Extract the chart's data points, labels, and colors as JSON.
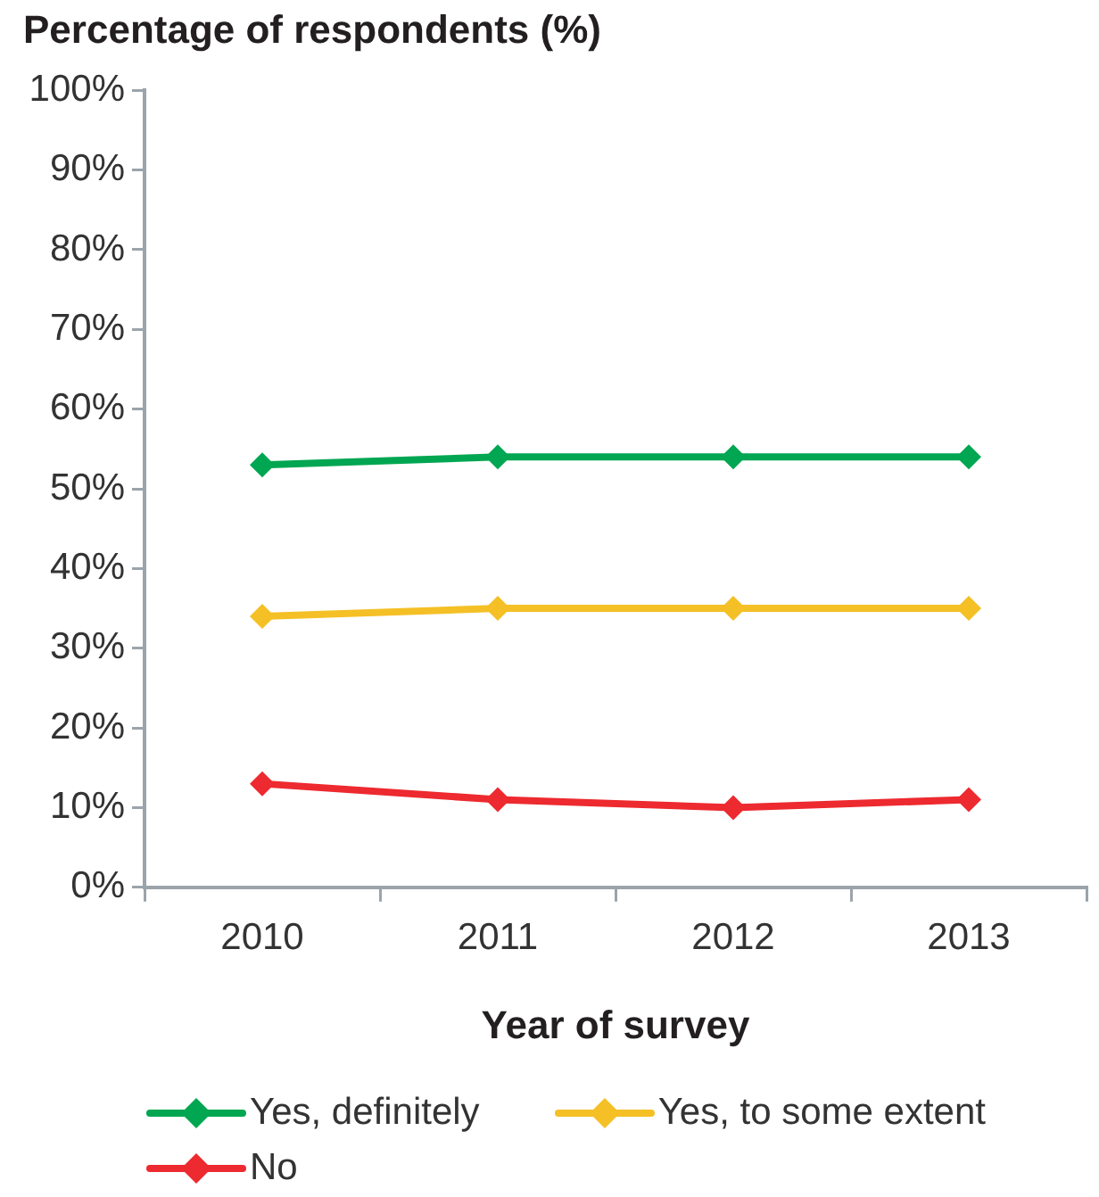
{
  "chart_data": {
    "type": "line",
    "ylabel": "Percentage of respondents (%)",
    "xlabel": "Year of survey",
    "categories": [
      "2010",
      "2011",
      "2012",
      "2013"
    ],
    "series": [
      {
        "name": "Yes, definitely",
        "color": "#00a651",
        "values": [
          53,
          54,
          54,
          54
        ]
      },
      {
        "name": "Yes, to some extent",
        "color": "#f4c025",
        "values": [
          34,
          35,
          35,
          35
        ]
      },
      {
        "name": "No",
        "color": "#ed2a2f",
        "values": [
          13,
          11,
          10,
          11
        ]
      }
    ],
    "ylim": [
      0,
      100
    ],
    "yticks": [
      {
        "value": 0,
        "label": "0%"
      },
      {
        "value": 10,
        "label": "10%"
      },
      {
        "value": 20,
        "label": "20%"
      },
      {
        "value": 30,
        "label": "30%"
      },
      {
        "value": 40,
        "label": "40%"
      },
      {
        "value": 50,
        "label": "50%"
      },
      {
        "value": 60,
        "label": "60%"
      },
      {
        "value": 70,
        "label": "70%"
      },
      {
        "value": 80,
        "label": "80%"
      },
      {
        "value": 90,
        "label": "90%"
      },
      {
        "value": 100,
        "label": "100%"
      }
    ],
    "grid": false,
    "legend": "bottom",
    "marker": "diamond",
    "line_style": "solid"
  }
}
